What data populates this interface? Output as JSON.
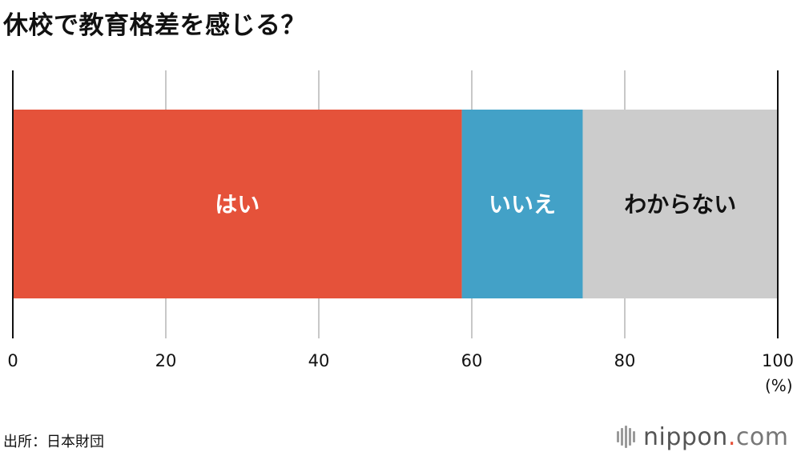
{
  "title": "休校で教育格差を感じる？",
  "source": "出所：日本財団",
  "logo": {
    "name": "nippon",
    "dot": ".",
    "tld": "com"
  },
  "chart_data": {
    "type": "bar",
    "stacked": true,
    "orientation": "horizontal",
    "xlim": [
      0,
      100
    ],
    "x_ticks": [
      "0",
      "20",
      "40",
      "60",
      "80",
      "100"
    ],
    "x_unit": "(%)",
    "grid": true,
    "series": [
      {
        "name": "はい",
        "value": 58.7,
        "color": "#e5523a",
        "label_color": "#ffffff"
      },
      {
        "name": "いいえ",
        "value": 15.8,
        "color": "#43a1c7",
        "label_color": "#ffffff"
      },
      {
        "name": "わからない",
        "value": 25.5,
        "color": "#cccccc",
        "label_color": "#111111"
      }
    ]
  }
}
